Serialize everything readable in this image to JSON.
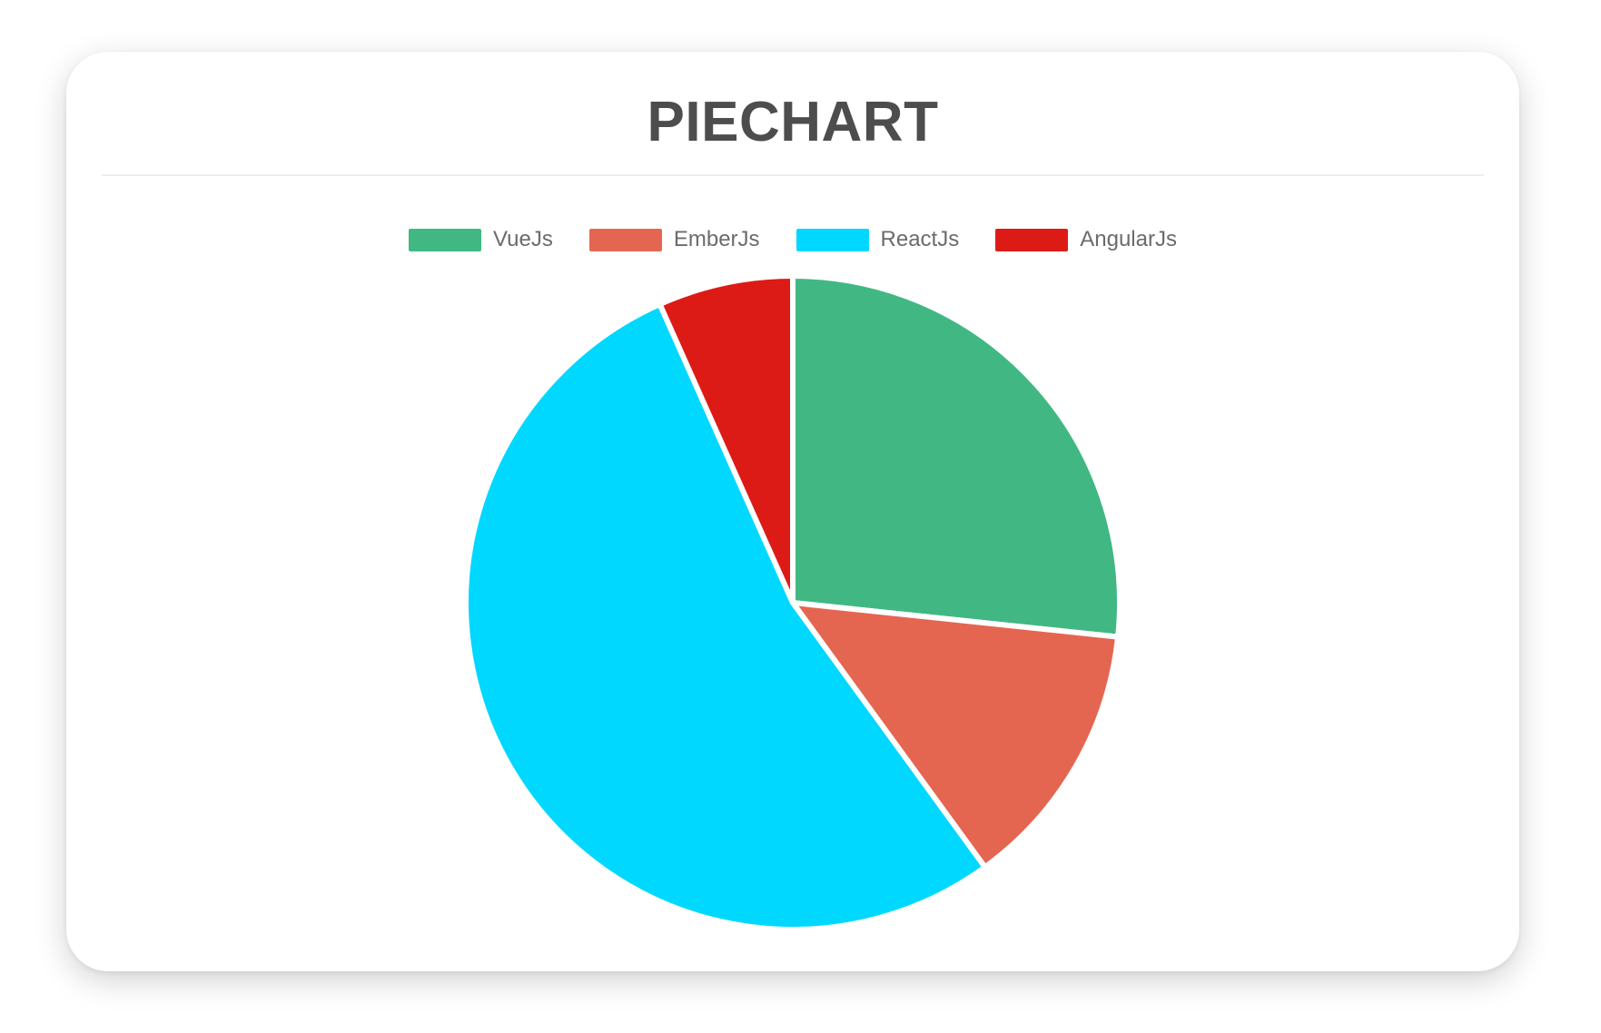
{
  "chart_data": {
    "type": "pie",
    "title": "PIECHART",
    "labels": [
      "VueJs",
      "EmberJs",
      "ReactJs",
      "AngularJs"
    ],
    "values": [
      40,
      20,
      80,
      10
    ],
    "percentages": [
      26.7,
      13.3,
      53.3,
      6.7
    ],
    "colors": [
      "#41B883",
      "#E46651",
      "#00D8FF",
      "#DD1B16"
    ],
    "legend_position": "top",
    "start_angle_deg": 0,
    "direction": "clockwise",
    "slice_border": {
      "color": "#ffffff",
      "width": 6
    }
  },
  "style": {
    "title_color": "#4d4d4d",
    "legend_label_color": "#6b6b6b",
    "divider_color": "#ededed",
    "card_background": "#ffffff",
    "page_background": "#ffffff"
  }
}
